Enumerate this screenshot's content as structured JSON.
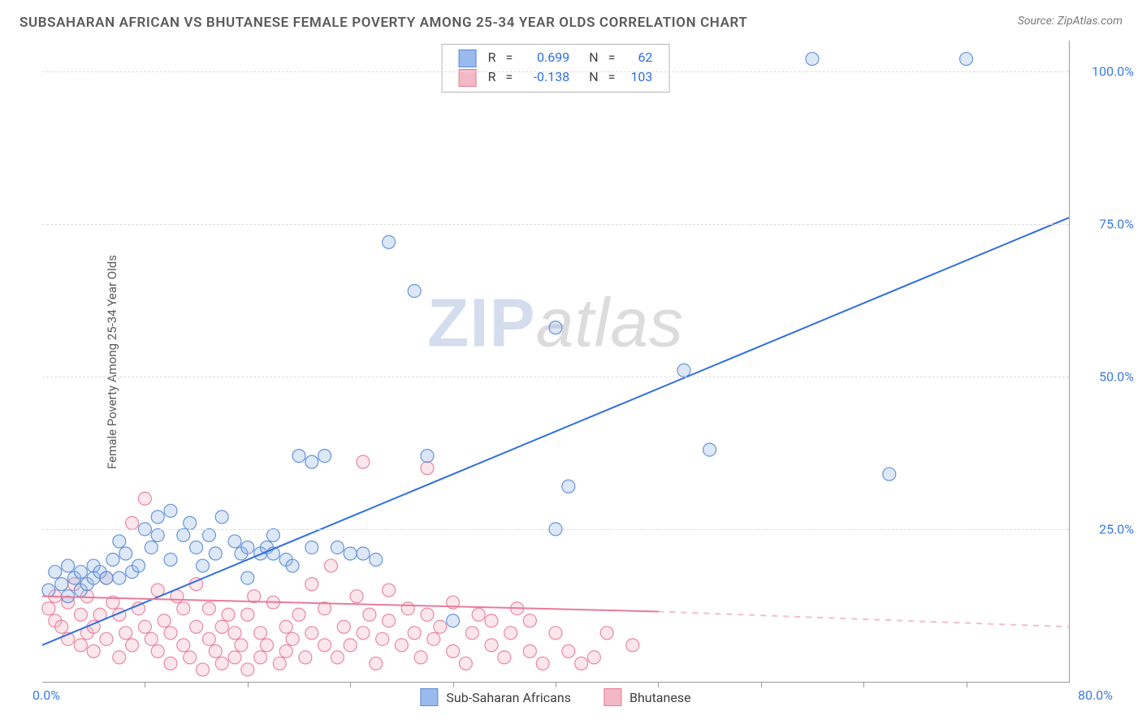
{
  "title": "SUBSAHARAN AFRICAN VS BHUTANESE FEMALE POVERTY AMONG 25-34 YEAR OLDS CORRELATION CHART",
  "source_label": "Source: ",
  "source_name": "ZipAtlas.com",
  "y_axis_label": "Female Poverty Among 25-34 Year Olds",
  "watermark": {
    "part1": "ZIP",
    "part2": "atlas"
  },
  "chart": {
    "type": "scatter-correlation",
    "background_color": "#ffffff",
    "grid_color": "#dcdcdc",
    "axis_color": "#9a9a9a",
    "tick_label_color": "#3a7ae0",
    "x_range": [
      0,
      80
    ],
    "y_range": [
      0,
      105
    ],
    "x_origin_label": "0.0%",
    "x_end_label": "80.0%",
    "x_tick_step": 8,
    "y_ticks": [
      {
        "value": 25,
        "label": "25.0%"
      },
      {
        "value": 50,
        "label": "50.0%"
      },
      {
        "value": 75,
        "label": "75.0%"
      },
      {
        "value": 100,
        "label": "100.0%"
      }
    ],
    "marker_radius": 8,
    "marker_fill_opacity": 0.35,
    "marker_stroke_opacity": 0.9,
    "marker_stroke_width": 1.2,
    "line_width": 2,
    "correlation_box": {
      "r_label": "R",
      "n_label": "N",
      "equals": "=",
      "rows": [
        {
          "series": "a",
          "r": "0.699",
          "n": "62"
        },
        {
          "series": "b",
          "r": "-0.138",
          "n": "103"
        }
      ]
    },
    "legend": {
      "a_label": "Sub-Saharan Africans",
      "b_label": "Bhutanese"
    },
    "series": {
      "a": {
        "name": "Sub-Saharan Africans",
        "color_fill": "#9ab9ec",
        "color_stroke": "#5a8ad4",
        "line_color": "#2f6fe0",
        "trend": {
          "x1": 0,
          "y1": 6,
          "x2": 80,
          "y2": 76,
          "dash_from_x": 80
        },
        "points": [
          [
            0.5,
            15
          ],
          [
            1,
            18
          ],
          [
            1.5,
            16
          ],
          [
            2,
            14
          ],
          [
            2,
            19
          ],
          [
            2.5,
            17
          ],
          [
            3,
            18
          ],
          [
            3,
            15
          ],
          [
            3.5,
            16
          ],
          [
            4,
            19
          ],
          [
            4,
            17
          ],
          [
            4.5,
            18
          ],
          [
            5,
            17
          ],
          [
            5.5,
            20
          ],
          [
            6,
            17
          ],
          [
            6,
            23
          ],
          [
            6.5,
            21
          ],
          [
            7,
            18
          ],
          [
            7.5,
            19
          ],
          [
            8,
            25
          ],
          [
            8.5,
            22
          ],
          [
            9,
            24
          ],
          [
            9,
            27
          ],
          [
            10,
            20
          ],
          [
            10,
            28
          ],
          [
            11,
            24
          ],
          [
            11.5,
            26
          ],
          [
            12,
            22
          ],
          [
            12.5,
            19
          ],
          [
            13,
            24
          ],
          [
            13.5,
            21
          ],
          [
            14,
            27
          ],
          [
            15,
            23
          ],
          [
            15.5,
            21
          ],
          [
            16,
            22
          ],
          [
            16,
            17
          ],
          [
            17,
            21
          ],
          [
            17.5,
            22
          ],
          [
            18,
            24
          ],
          [
            18,
            21
          ],
          [
            19,
            20
          ],
          [
            19.5,
            19
          ],
          [
            20,
            37
          ],
          [
            21,
            22
          ],
          [
            21,
            36
          ],
          [
            22,
            37
          ],
          [
            23,
            22
          ],
          [
            24,
            21
          ],
          [
            25,
            21
          ],
          [
            26,
            20
          ],
          [
            27,
            72
          ],
          [
            29,
            64
          ],
          [
            30,
            37
          ],
          [
            32,
            10
          ],
          [
            40,
            58
          ],
          [
            40,
            25
          ],
          [
            41,
            32
          ],
          [
            50,
            51
          ],
          [
            52,
            38
          ],
          [
            60,
            102
          ],
          [
            66,
            34
          ],
          [
            72,
            102
          ]
        ]
      },
      "b": {
        "name": "Bhutanese",
        "color_fill": "#f3b8c6",
        "color_stroke": "#e87b9a",
        "line_color": "#e87b9a",
        "trend": {
          "x1": 0,
          "y1": 14,
          "x2": 48,
          "y2": 11.5,
          "dash_from_x": 48,
          "dash_x2": 80,
          "dash_y2": 9
        },
        "points": [
          [
            0.5,
            12
          ],
          [
            1,
            10
          ],
          [
            1,
            14
          ],
          [
            1.5,
            9
          ],
          [
            2,
            7
          ],
          [
            2,
            13
          ],
          [
            2.5,
            16
          ],
          [
            3,
            6
          ],
          [
            3,
            11
          ],
          [
            3.5,
            8
          ],
          [
            3.5,
            14
          ],
          [
            4,
            9
          ],
          [
            4,
            5
          ],
          [
            4.5,
            11
          ],
          [
            5,
            7
          ],
          [
            5,
            17
          ],
          [
            5.5,
            13
          ],
          [
            6,
            4
          ],
          [
            6,
            11
          ],
          [
            6.5,
            8
          ],
          [
            7,
            26
          ],
          [
            7,
            6
          ],
          [
            7.5,
            12
          ],
          [
            8,
            30
          ],
          [
            8,
            9
          ],
          [
            8.5,
            7
          ],
          [
            9,
            5
          ],
          [
            9,
            15
          ],
          [
            9.5,
            10
          ],
          [
            10,
            3
          ],
          [
            10,
            8
          ],
          [
            10.5,
            14
          ],
          [
            11,
            6
          ],
          [
            11,
            12
          ],
          [
            11.5,
            4
          ],
          [
            12,
            9
          ],
          [
            12,
            16
          ],
          [
            12.5,
            2
          ],
          [
            13,
            7
          ],
          [
            13,
            12
          ],
          [
            13.5,
            5
          ],
          [
            14,
            3
          ],
          [
            14,
            9
          ],
          [
            14.5,
            11
          ],
          [
            15,
            4
          ],
          [
            15,
            8
          ],
          [
            15.5,
            6
          ],
          [
            16,
            2
          ],
          [
            16,
            11
          ],
          [
            16.5,
            14
          ],
          [
            17,
            4
          ],
          [
            17,
            8
          ],
          [
            17.5,
            6
          ],
          [
            18,
            13
          ],
          [
            18.5,
            3
          ],
          [
            19,
            9
          ],
          [
            19,
            5
          ],
          [
            19.5,
            7
          ],
          [
            20,
            11
          ],
          [
            20.5,
            4
          ],
          [
            21,
            8
          ],
          [
            21,
            16
          ],
          [
            22,
            6
          ],
          [
            22,
            12
          ],
          [
            22.5,
            19
          ],
          [
            23,
            4
          ],
          [
            23.5,
            9
          ],
          [
            24,
            6
          ],
          [
            24.5,
            14
          ],
          [
            25,
            36
          ],
          [
            25,
            8
          ],
          [
            25.5,
            11
          ],
          [
            26,
            3
          ],
          [
            26.5,
            7
          ],
          [
            27,
            10
          ],
          [
            27,
            15
          ],
          [
            28,
            6
          ],
          [
            28.5,
            12
          ],
          [
            29,
            8
          ],
          [
            29.5,
            4
          ],
          [
            30,
            35
          ],
          [
            30,
            11
          ],
          [
            30.5,
            7
          ],
          [
            31,
            9
          ],
          [
            32,
            5
          ],
          [
            32,
            13
          ],
          [
            33,
            3
          ],
          [
            33.5,
            8
          ],
          [
            34,
            11
          ],
          [
            35,
            6
          ],
          [
            35,
            10
          ],
          [
            36,
            4
          ],
          [
            36.5,
            8
          ],
          [
            37,
            12
          ],
          [
            38,
            5
          ],
          [
            38,
            10
          ],
          [
            39,
            3
          ],
          [
            40,
            8
          ],
          [
            41,
            5
          ],
          [
            42,
            3
          ],
          [
            43,
            4
          ],
          [
            44,
            8
          ],
          [
            46,
            6
          ]
        ]
      }
    }
  }
}
